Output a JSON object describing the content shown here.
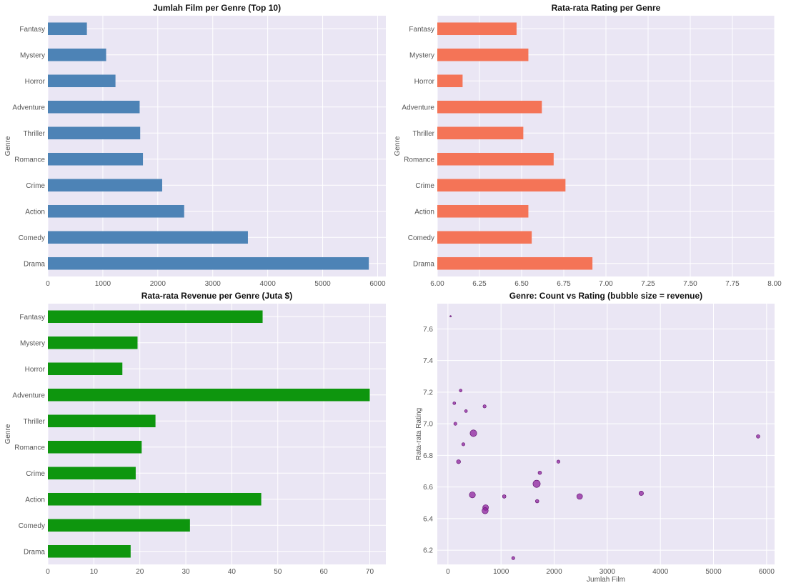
{
  "chart_data": [
    {
      "type": "bar",
      "orientation": "horizontal",
      "title": "Jumlah Film per Genre (Top 10)",
      "xlabel": "",
      "ylabel": "Genre",
      "categories": [
        "Drama",
        "Comedy",
        "Action",
        "Crime",
        "Romance",
        "Thriller",
        "Adventure",
        "Horror",
        "Mystery",
        "Fantasy"
      ],
      "values": [
        5840,
        3640,
        2480,
        2080,
        1730,
        1680,
        1670,
        1230,
        1060,
        710
      ],
      "xlim": [
        0,
        6150
      ],
      "xticks": [
        0,
        1000,
        2000,
        3000,
        4000,
        5000,
        6000
      ],
      "color": "#4d83b6",
      "grid": true
    },
    {
      "type": "bar",
      "orientation": "horizontal",
      "title": "Rata-rata Rating per Genre",
      "xlabel": "",
      "ylabel": "Genre",
      "categories": [
        "Drama",
        "Comedy",
        "Action",
        "Crime",
        "Romance",
        "Thriller",
        "Adventure",
        "Horror",
        "Mystery",
        "Fantasy"
      ],
      "values": [
        6.92,
        6.56,
        6.54,
        6.76,
        6.69,
        6.51,
        6.62,
        6.15,
        6.54,
        6.47
      ],
      "xlim": [
        6.0,
        8.0
      ],
      "xticks": [
        "6.00",
        "6.25",
        "6.50",
        "6.75",
        "7.00",
        "7.25",
        "7.50",
        "7.75",
        "8.00"
      ],
      "color": "#f47457",
      "grid": true
    },
    {
      "type": "bar",
      "orientation": "horizontal",
      "title": "Rata-rata Revenue per Genre (Juta $)",
      "xlabel": "",
      "ylabel": "Genre",
      "categories": [
        "Drama",
        "Comedy",
        "Action",
        "Crime",
        "Romance",
        "Thriller",
        "Adventure",
        "Horror",
        "Mystery",
        "Fantasy"
      ],
      "values": [
        18.0,
        30.9,
        46.4,
        19.1,
        20.4,
        23.4,
        70.0,
        16.2,
        19.5,
        46.7
      ],
      "xlim": [
        0,
        73.5
      ],
      "xticks": [
        0,
        10,
        20,
        30,
        40,
        50,
        60,
        70
      ],
      "color": "#0e960e",
      "grid": true
    },
    {
      "type": "scatter",
      "title": "Genre: Count vs Rating (bubble size = revenue)",
      "xlabel": "Jumlah Film",
      "ylabel": "Rata-rata Rating",
      "xlim": [
        -200,
        6150
      ],
      "ylim": [
        6.11,
        7.76
      ],
      "xticks": [
        0,
        1000,
        2000,
        3000,
        4000,
        5000,
        6000
      ],
      "yticks": [
        "6.2",
        "6.4",
        "6.6",
        "6.8",
        "7.0",
        "7.2",
        "7.4",
        "7.6"
      ],
      "color": "#8a1a9a",
      "points": [
        {
          "x": 50,
          "y": 7.68,
          "size": 1
        },
        {
          "x": 120,
          "y": 7.13,
          "size": 4
        },
        {
          "x": 140,
          "y": 7.0,
          "size": 5
        },
        {
          "x": 200,
          "y": 6.76,
          "size": 8
        },
        {
          "x": 240,
          "y": 7.21,
          "size": 4
        },
        {
          "x": 290,
          "y": 6.87,
          "size": 5
        },
        {
          "x": 340,
          "y": 7.08,
          "size": 4
        },
        {
          "x": 460,
          "y": 6.55,
          "size": 18
        },
        {
          "x": 480,
          "y": 6.94,
          "size": 22
        },
        {
          "x": 690,
          "y": 7.11,
          "size": 5
        },
        {
          "x": 710,
          "y": 6.47,
          "size": 16
        },
        {
          "x": 700,
          "y": 6.45,
          "size": 19
        },
        {
          "x": 1060,
          "y": 6.54,
          "size": 6
        },
        {
          "x": 1230,
          "y": 6.15,
          "size": 5
        },
        {
          "x": 1670,
          "y": 6.62,
          "size": 26
        },
        {
          "x": 1680,
          "y": 6.51,
          "size": 6
        },
        {
          "x": 1730,
          "y": 6.69,
          "size": 6
        },
        {
          "x": 2080,
          "y": 6.76,
          "size": 5
        },
        {
          "x": 2480,
          "y": 6.54,
          "size": 16
        },
        {
          "x": 3640,
          "y": 6.56,
          "size": 10
        },
        {
          "x": 5840,
          "y": 6.92,
          "size": 6
        }
      ],
      "grid": true
    }
  ]
}
